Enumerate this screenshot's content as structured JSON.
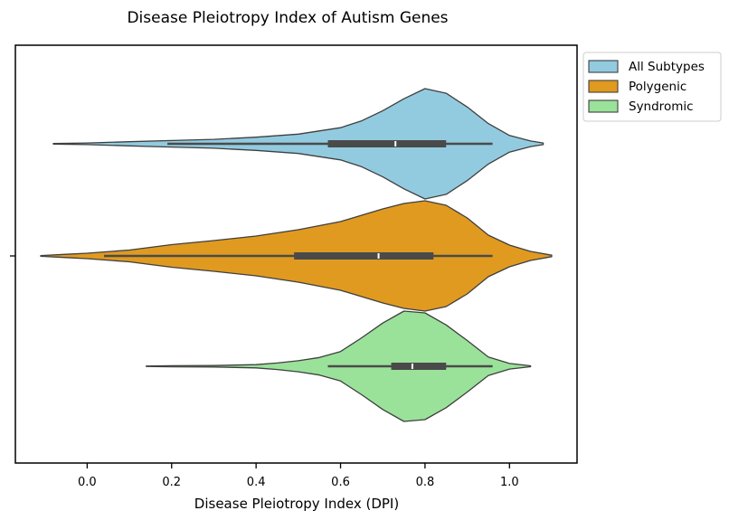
{
  "chart_data": {
    "type": "violin",
    "orientation": "horizontal",
    "title": "Disease Pleiotropy Index of Autism Genes",
    "xlabel": "Disease Pleiotropy Index (DPI)",
    "ylabel": "",
    "xlim": [
      -0.17,
      1.16
    ],
    "xticks": [
      0.0,
      0.2,
      0.4,
      0.6,
      0.8,
      1.0
    ],
    "xtick_labels": [
      "0.0",
      "0.2",
      "0.4",
      "0.6",
      "0.8",
      "1.0"
    ],
    "grid": false,
    "legend_position": "outside-top-right",
    "series": [
      {
        "name": "All Subtypes",
        "color": "#92cbe0",
        "kde_range": [
          -0.08,
          1.08
        ],
        "box": {
          "whisker_low": 0.19,
          "q1": 0.57,
          "median": 0.73,
          "q3": 0.85,
          "whisker_high": 0.96
        },
        "density": [
          [
            -0.08,
            0.3
          ],
          [
            0.0,
            0.9
          ],
          [
            0.1,
            2.3
          ],
          [
            0.2,
            3.5
          ],
          [
            0.3,
            4.8
          ],
          [
            0.4,
            7.2
          ],
          [
            0.5,
            10.5
          ],
          [
            0.6,
            17.5
          ],
          [
            0.65,
            25.0
          ],
          [
            0.7,
            36.0
          ],
          [
            0.75,
            49.0
          ],
          [
            0.8,
            60.0
          ],
          [
            0.85,
            55.0
          ],
          [
            0.9,
            40.0
          ],
          [
            0.95,
            22.0
          ],
          [
            1.0,
            9.0
          ],
          [
            1.05,
            3.0
          ],
          [
            1.08,
            0.9
          ]
        ]
      },
      {
        "name": "Polygenic",
        "color": "#e09a20",
        "kde_range": [
          -0.11,
          1.1
        ],
        "box": {
          "whisker_low": 0.04,
          "q1": 0.49,
          "median": 0.69,
          "q3": 0.82,
          "whisker_high": 0.96
        },
        "density": [
          [
            -0.11,
            0.4
          ],
          [
            -0.05,
            1.8
          ],
          [
            0.0,
            3.0
          ],
          [
            0.1,
            6.5
          ],
          [
            0.2,
            12.5
          ],
          [
            0.3,
            17.0
          ],
          [
            0.4,
            22.0
          ],
          [
            0.5,
            29.0
          ],
          [
            0.6,
            38.0
          ],
          [
            0.7,
            52.0
          ],
          [
            0.75,
            58.0
          ],
          [
            0.8,
            61.0
          ],
          [
            0.85,
            56.0
          ],
          [
            0.9,
            42.0
          ],
          [
            0.95,
            23.0
          ],
          [
            1.0,
            12.0
          ],
          [
            1.05,
            5.0
          ],
          [
            1.1,
            0.8
          ]
        ]
      },
      {
        "name": "Syndromic",
        "color": "#9ae29a",
        "kde_range": [
          0.14,
          1.05
        ],
        "box": {
          "whisker_low": 0.57,
          "q1": 0.72,
          "median": 0.77,
          "q3": 0.85,
          "whisker_high": 0.96
        },
        "density": [
          [
            0.14,
            0.2
          ],
          [
            0.2,
            0.6
          ],
          [
            0.3,
            0.8
          ],
          [
            0.4,
            1.8
          ],
          [
            0.45,
            3.5
          ],
          [
            0.5,
            6.0
          ],
          [
            0.55,
            9.5
          ],
          [
            0.6,
            16.0
          ],
          [
            0.65,
            31.0
          ],
          [
            0.7,
            47.0
          ],
          [
            0.75,
            60.0
          ],
          [
            0.8,
            58.0
          ],
          [
            0.85,
            45.0
          ],
          [
            0.9,
            28.0
          ],
          [
            0.95,
            10.0
          ],
          [
            1.0,
            3.0
          ],
          [
            1.05,
            0.5
          ]
        ]
      }
    ]
  }
}
